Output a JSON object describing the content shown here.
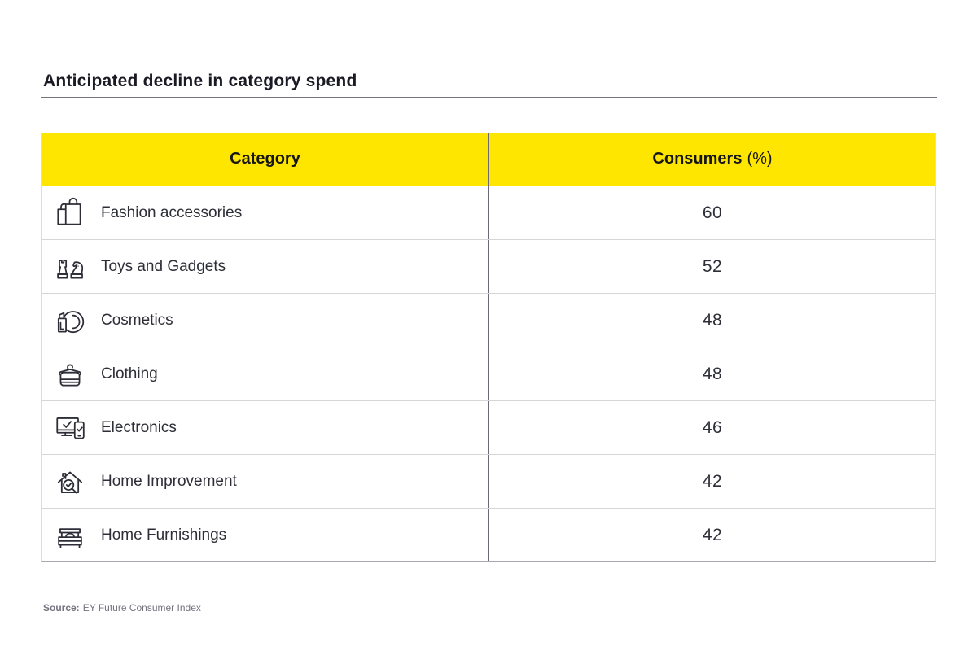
{
  "page": {
    "title": "Anticipated decline in category spend"
  },
  "table": {
    "headers": {
      "category": "Category",
      "consumers": "Consumers",
      "consumers_unit": "(%)"
    },
    "rows": [
      {
        "icon": "shopping-bags",
        "category": "Fashion accessories",
        "value": "60"
      },
      {
        "icon": "chess-pieces",
        "category": "Toys and Gadgets",
        "value": "52"
      },
      {
        "icon": "lipstick-mirror",
        "category": "Cosmetics",
        "value": "48"
      },
      {
        "icon": "hanger-garment",
        "category": "Clothing",
        "value": "48"
      },
      {
        "icon": "devices-check",
        "category": "Electronics",
        "value": "46"
      },
      {
        "icon": "house-magnifier",
        "category": "Home Improvement",
        "value": "42"
      },
      {
        "icon": "bed",
        "category": "Home Furnishings",
        "value": "42"
      }
    ]
  },
  "source": {
    "label": "Source:",
    "text": "EY Future Consumer Index"
  },
  "colors": {
    "header_bg": "#FFE600",
    "text_dark": "#2E2E38",
    "title_text": "#1A1A24",
    "column_divider": "#6A6A74",
    "row_separator": "#D6D6DA",
    "source_text": "#747480"
  },
  "chart_data": {
    "type": "table",
    "title": "Anticipated decline in category spend",
    "columns": [
      "Category",
      "Consumers (%)"
    ],
    "categories": [
      "Fashion accessories",
      "Toys and Gadgets",
      "Cosmetics",
      "Clothing",
      "Electronics",
      "Home Improvement",
      "Home Furnishings"
    ],
    "values": [
      60,
      52,
      48,
      48,
      46,
      42,
      42
    ],
    "source": "EY Future Consumer Index",
    "layout": {
      "header_style": "yellow",
      "grid": "horizontal-rows",
      "value_alignment": "center"
    }
  }
}
